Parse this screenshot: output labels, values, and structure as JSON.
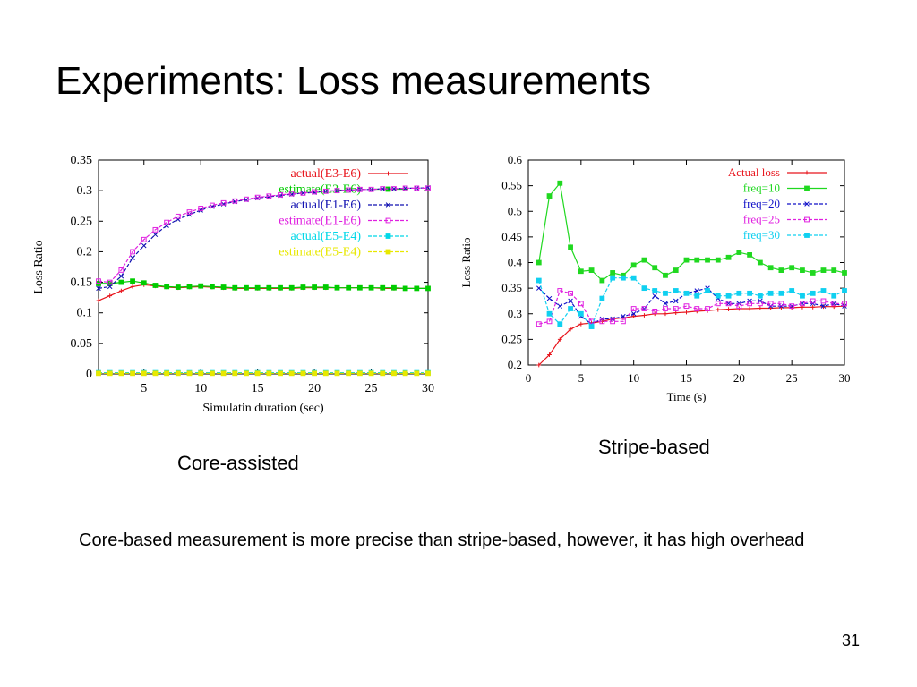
{
  "slide": {
    "title": "Experiments: Loss measurements",
    "caption_left": "Core-assisted",
    "caption_right": "Stripe-based",
    "body": "Core-based measurement is more precise than stripe-based, however, it has high overhead",
    "page_number": "31"
  },
  "chart_data": [
    {
      "type": "line",
      "xlabel": "Simulatin duration (sec)",
      "ylabel": "Loss Ratio",
      "xlim": [
        1,
        30
      ],
      "ylim": [
        0,
        0.35
      ],
      "xticks": [
        5,
        10,
        15,
        20,
        25,
        30
      ],
      "yticks": [
        0,
        0.05,
        0.1,
        0.15,
        0.2,
        0.25,
        0.3,
        0.35
      ],
      "ytick_labels": [
        "0",
        "0.05",
        "0.1",
        "0.15",
        "0.2",
        "0.25",
        "0.3",
        "0.35"
      ],
      "legend_position": "top-right",
      "grid": false,
      "x": [
        1,
        2,
        3,
        4,
        5,
        6,
        7,
        8,
        9,
        10,
        11,
        12,
        13,
        14,
        15,
        16,
        17,
        18,
        19,
        20,
        21,
        22,
        23,
        24,
        25,
        26,
        27,
        28,
        29,
        30
      ],
      "series": [
        {
          "name": "actual(E3-E6)",
          "color": "#e8141c",
          "dash": "",
          "values": [
            0.12,
            0.128,
            0.136,
            0.143,
            0.146,
            0.144,
            0.142,
            0.141,
            0.142,
            0.143,
            0.142,
            0.141,
            0.14,
            0.14,
            0.14,
            0.14,
            0.14,
            0.14,
            0.141,
            0.141,
            0.141,
            0.141,
            0.141,
            0.141,
            0.141,
            0.14,
            0.14,
            0.14,
            0.14,
            0.14
          ]
        },
        {
          "name": "estimate(E3-E6)",
          "color": "#00cc00",
          "dash": "",
          "values": [
            0.148,
            0.148,
            0.15,
            0.152,
            0.149,
            0.145,
            0.143,
            0.142,
            0.143,
            0.144,
            0.143,
            0.142,
            0.141,
            0.141,
            0.141,
            0.141,
            0.141,
            0.141,
            0.142,
            0.142,
            0.142,
            0.141,
            0.141,
            0.141,
            0.141,
            0.141,
            0.141,
            0.14,
            0.14,
            0.14
          ]
        },
        {
          "name": "actual(E1-E6)",
          "color": "#1010b0",
          "dash": "4,2",
          "values": [
            0.14,
            0.143,
            0.16,
            0.19,
            0.21,
            0.228,
            0.243,
            0.253,
            0.261,
            0.268,
            0.274,
            0.278,
            0.282,
            0.285,
            0.288,
            0.29,
            0.292,
            0.294,
            0.296,
            0.297,
            0.299,
            0.3,
            0.301,
            0.302,
            0.302,
            0.303,
            0.303,
            0.304,
            0.304,
            0.305
          ]
        },
        {
          "name": "estimate(E1-E6)",
          "color": "#e020e0",
          "dash": "4,2",
          "values": [
            0.152,
            0.15,
            0.17,
            0.2,
            0.22,
            0.236,
            0.248,
            0.258,
            0.265,
            0.271,
            0.276,
            0.28,
            0.283,
            0.286,
            0.289,
            0.291,
            0.293,
            0.295,
            0.296,
            0.298,
            0.299,
            0.3,
            0.301,
            0.302,
            0.302,
            0.303,
            0.303,
            0.304,
            0.304,
            0.304
          ]
        },
        {
          "name": "actual(E5-E4)",
          "color": "#00d8e8",
          "dash": "4,2",
          "values": [
            0.002,
            0.002,
            0.002,
            0.002,
            0.002,
            0.002,
            0.002,
            0.002,
            0.002,
            0.002,
            0.002,
            0.002,
            0.002,
            0.002,
            0.002,
            0.002,
            0.002,
            0.002,
            0.002,
            0.002,
            0.002,
            0.002,
            0.002,
            0.002,
            0.002,
            0.002,
            0.002,
            0.002,
            0.002,
            0.002
          ]
        },
        {
          "name": "estimate(E5-E4)",
          "color": "#e8e800",
          "dash": "4,2",
          "values": [
            0.001,
            0.001,
            0.001,
            0.001,
            0.001,
            0.001,
            0.001,
            0.001,
            0.001,
            0.001,
            0.001,
            0.001,
            0.001,
            0.001,
            0.001,
            0.001,
            0.001,
            0.001,
            0.001,
            0.001,
            0.001,
            0.001,
            0.001,
            0.001,
            0.001,
            0.001,
            0.001,
            0.001,
            0.001,
            0.001
          ]
        }
      ]
    },
    {
      "type": "line",
      "xlabel": "Time (s)",
      "ylabel": "Loss Ratio",
      "xlim": [
        0,
        30
      ],
      "ylim": [
        0.2,
        0.6
      ],
      "xticks": [
        0,
        5,
        10,
        15,
        20,
        25,
        30
      ],
      "yticks": [
        0.2,
        0.25,
        0.3,
        0.35,
        0.4,
        0.45,
        0.5,
        0.55,
        0.6
      ],
      "ytick_labels": [
        "0.2",
        "0.25",
        "0.3",
        "0.35",
        "0.4",
        "0.45",
        "0.5",
        "0.55",
        "0.6"
      ],
      "legend_position": "top-right",
      "grid": false,
      "x": [
        1,
        2,
        3,
        4,
        5,
        6,
        7,
        8,
        9,
        10,
        11,
        12,
        13,
        14,
        15,
        16,
        17,
        18,
        19,
        20,
        21,
        22,
        23,
        24,
        25,
        26,
        27,
        28,
        29,
        30
      ],
      "series": [
        {
          "name": "Actual loss",
          "color": "#e8141c",
          "dash": "",
          "values": [
            0.2,
            0.22,
            0.25,
            0.27,
            0.28,
            0.282,
            0.285,
            0.29,
            0.292,
            0.295,
            0.297,
            0.3,
            0.3,
            0.302,
            0.303,
            0.305,
            0.306,
            0.308,
            0.309,
            0.31,
            0.31,
            0.311,
            0.311,
            0.312,
            0.312,
            0.313,
            0.313,
            0.314,
            0.314,
            0.315
          ]
        },
        {
          "name": "freq=10",
          "color": "#20d820",
          "dash": "",
          "values": [
            0.4,
            0.53,
            0.555,
            0.43,
            0.383,
            0.385,
            0.365,
            0.38,
            0.375,
            0.395,
            0.405,
            0.39,
            0.375,
            0.385,
            0.405,
            0.405,
            0.405,
            0.405,
            0.41,
            0.42,
            0.415,
            0.4,
            0.39,
            0.385,
            0.39,
            0.385,
            0.38,
            0.385,
            0.385,
            0.38
          ]
        },
        {
          "name": "freq=20",
          "color": "#1010c8",
          "dash": "4,2",
          "values": [
            0.35,
            0.33,
            0.315,
            0.325,
            0.295,
            0.28,
            0.29,
            0.29,
            0.295,
            0.3,
            0.31,
            0.335,
            0.32,
            0.325,
            0.34,
            0.345,
            0.35,
            0.33,
            0.32,
            0.32,
            0.325,
            0.325,
            0.315,
            0.315,
            0.315,
            0.32,
            0.32,
            0.315,
            0.32,
            0.315
          ]
        },
        {
          "name": "freq=25",
          "color": "#e020e0",
          "dash": "4,2",
          "values": [
            0.28,
            0.285,
            0.345,
            0.34,
            0.32,
            0.285,
            0.285,
            0.285,
            0.285,
            0.31,
            0.31,
            0.305,
            0.31,
            0.31,
            0.315,
            0.31,
            0.31,
            0.32,
            0.32,
            0.315,
            0.32,
            0.32,
            0.32,
            0.32,
            0.315,
            0.32,
            0.325,
            0.325,
            0.32,
            0.32
          ]
        },
        {
          "name": "freq=30",
          "color": "#10d0f0",
          "dash": "4,2",
          "values": [
            0.365,
            0.3,
            0.28,
            0.31,
            0.3,
            0.275,
            0.33,
            0.37,
            0.37,
            0.37,
            0.35,
            0.345,
            0.34,
            0.345,
            0.34,
            0.335,
            0.345,
            0.335,
            0.335,
            0.34,
            0.34,
            0.335,
            0.34,
            0.34,
            0.345,
            0.335,
            0.34,
            0.345,
            0.335,
            0.345
          ]
        }
      ]
    }
  ]
}
